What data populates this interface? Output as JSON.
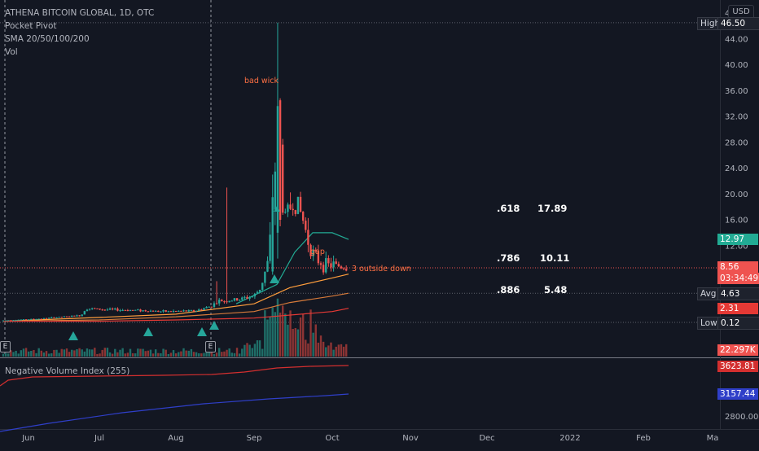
{
  "legend": {
    "symbol_line": "ATHENA BITCOIN GLOBAL, 1D, OTC",
    "indicator_pocket_pivot": "Pocket Pivot",
    "indicator_sma": "SMA 20/50/100/200",
    "indicator_vol": "Vol"
  },
  "currency_button": "USD",
  "nvi_label": "Negative Volume Index (255)",
  "annotations": {
    "bad_wick": "bad wick",
    "gap": "gap",
    "outside_down": "3 outside down"
  },
  "earnings_badge": "E",
  "fib_levels": [
    {
      "ratio": ".618",
      "price": "17.89"
    },
    {
      "ratio": ".786",
      "price": "10.11"
    },
    {
      "ratio": ".886",
      "price": "5.48"
    }
  ],
  "price_tags": {
    "high_label": "High",
    "high_value": "46.50",
    "sma_value": "12.97",
    "last_value": "8.56",
    "countdown": "03:34:49",
    "avg_label": "Avg",
    "avg_value": "4.63",
    "red_value": "2.31",
    "low_label": "Low",
    "low_value": "0.12",
    "volume_value": "22.297K",
    "nvi_value": "3623.81",
    "nvi_ma_value": "3157.44"
  },
  "colors": {
    "background": "#131722",
    "up": "#26a69a",
    "down": "#ef5350",
    "sma20": "#22ab94",
    "sma50": "#ff9e3d",
    "sma100": "#d67a3a",
    "sma200": "#e53935",
    "nvi": "#d32f2f",
    "nvi_ma": "#2f3fc9",
    "pivot": "#26a69a"
  },
  "chart_data": {
    "type": "candlestick",
    "price_axis": {
      "ticks": [
        "48.00",
        "44.00",
        "40.00",
        "36.00",
        "32.00",
        "28.00",
        "24.00",
        "20.00",
        "16.00",
        "12.00",
        "8.00",
        "4.00",
        "0.00"
      ],
      "range": [
        0,
        48
      ]
    },
    "nvi_axis": {
      "ticks": [
        "2800.00"
      ]
    },
    "time_axis": {
      "labels": [
        "Jun",
        "Jul",
        "Aug",
        "Sep",
        "Oct",
        "Nov",
        "Dec",
        "2022",
        "Feb",
        "Ma"
      ]
    },
    "series": [
      {
        "name": "Price",
        "x": [
          "May",
          "Jun",
          "Jul",
          "Aug",
          "Sep 1",
          "Sep 5",
          "Sep 8",
          "Sep 10",
          "Sep 13",
          "Sep 16",
          "Sep 20",
          "Sep 24",
          "Oct 1",
          "Oct 8"
        ],
        "close": [
          0.5,
          1,
          2,
          1.6,
          2,
          4.5,
          6,
          19,
          34,
          20,
          16,
          14,
          9,
          8.56
        ],
        "high": [
          0.6,
          1.3,
          3.3,
          2.4,
          3.5,
          6,
          8,
          22,
          46.5,
          25,
          22,
          17,
          12,
          9.5
        ],
        "low": [
          0.3,
          0.7,
          1.2,
          1.1,
          1.4,
          3,
          4.5,
          9,
          17,
          13,
          12,
          9,
          8,
          8
        ]
      },
      {
        "name": "SMA 20",
        "x": [
          "Aug 25",
          "Sep 10",
          "Sep 17",
          "Sep 24",
          "Oct 1",
          "Oct 8"
        ],
        "y": [
          3,
          6,
          11,
          14,
          14,
          12.97
        ]
      },
      {
        "name": "SMA 50",
        "x": [
          "Jul 1",
          "Aug 1",
          "Sep 1",
          "Sep 15",
          "Oct 1",
          "Oct 8"
        ],
        "y": [
          0.9,
          1.4,
          3,
          5.5,
          7,
          7.6
        ]
      },
      {
        "name": "SMA 100",
        "x": [
          "Jul 1",
          "Aug 1",
          "Sep 1",
          "Sep 15",
          "Oct 1",
          "Oct 8"
        ],
        "y": [
          0.5,
          1,
          1.8,
          3.2,
          4.2,
          4.63
        ]
      },
      {
        "name": "SMA 200",
        "x": [
          "Jul 1",
          "Aug 1",
          "Sep 1",
          "Oct 1",
          "Oct 8"
        ],
        "y": [
          0.3,
          0.5,
          0.8,
          1.8,
          2.31
        ]
      }
    ],
    "gridlines": false
  }
}
